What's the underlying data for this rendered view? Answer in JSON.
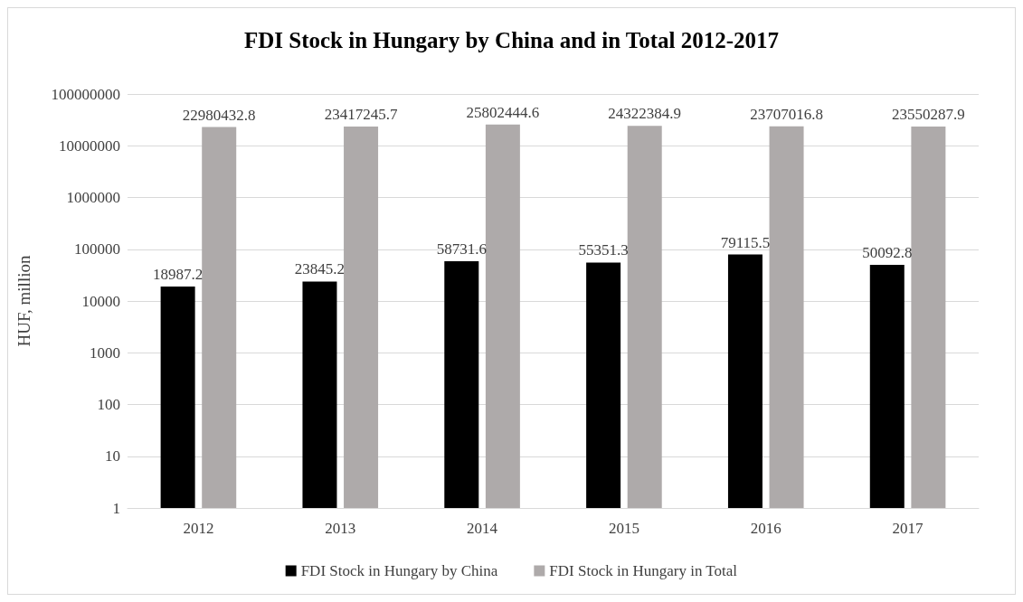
{
  "chart_data": {
    "type": "bar",
    "title": "FDI Stock in Hungary by China and in Total 2012-2017",
    "ylabel": "HUF, million",
    "categories": [
      "2012",
      "2013",
      "2014",
      "2015",
      "2016",
      "2017"
    ],
    "series": [
      {
        "name": "FDI Stock in Hungary by China",
        "color": "#000000",
        "values": [
          18987.2,
          23845.2,
          58731.6,
          55351.3,
          79115.5,
          50092.8
        ]
      },
      {
        "name": "FDI Stock in Hungary in Total",
        "color": "#aeaaaa",
        "values": [
          22980432.8,
          23417245.7,
          25802444.6,
          24322384.9,
          23707016.8,
          23550287.9
        ]
      }
    ],
    "log": "y",
    "ylim": [
      1,
      100000000
    ],
    "yticks": [
      1,
      10,
      100,
      1000,
      10000,
      100000,
      1000000,
      10000000,
      100000000
    ],
    "grid": "y",
    "legend": "bottom",
    "data_labels": true
  }
}
